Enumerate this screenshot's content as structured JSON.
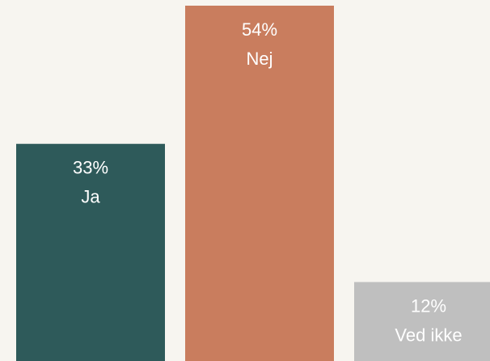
{
  "chart_data": {
    "type": "bar",
    "categories": [
      "Ja",
      "Nej",
      "Ved ikke"
    ],
    "values": [
      33,
      54,
      12
    ],
    "value_labels": [
      "33%",
      "54%",
      "12%"
    ],
    "colors": [
      "#2e5a5a",
      "#c97d5e",
      "#bfbfbf"
    ]
  }
}
